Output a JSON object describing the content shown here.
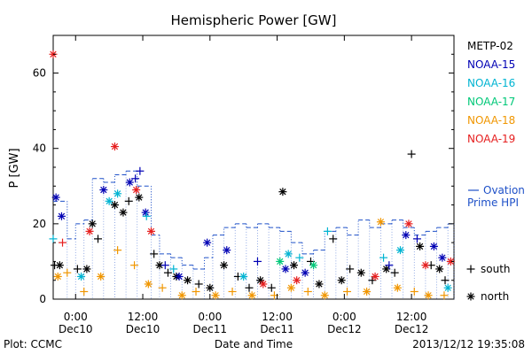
{
  "footer": {
    "plot_label": "Plot: CCMC",
    "timestamp": "2013/12/12 19:35:08"
  },
  "chart_data": {
    "type": "scatter",
    "title": "Hemispheric Power [GW]",
    "xlabel": "Date and Time",
    "ylabel": "P [GW]",
    "xlim": [
      "2013-12-09T20:00",
      "2013-12-12T19:35"
    ],
    "ylim": [
      0,
      70
    ],
    "y_ticks": [
      0,
      20,
      40,
      60
    ],
    "x_ticks": [
      {
        "at": "2013-12-10T00:00",
        "time": "0:00",
        "date": "Dec10"
      },
      {
        "at": "2013-12-10T12:00",
        "time": "12:00",
        "date": "Dec10"
      },
      {
        "at": "2013-12-11T00:00",
        "time": "0:00",
        "date": "Dec11"
      },
      {
        "at": "2013-12-11T12:00",
        "time": "12:00",
        "date": "Dec11"
      },
      {
        "at": "2013-12-12T00:00",
        "time": "0:00",
        "date": "Dec12"
      },
      {
        "at": "2013-12-12T12:00",
        "time": "12:00",
        "date": "Dec12"
      }
    ],
    "legend_placement": "right",
    "marker_legend": [
      {
        "symbol": "+",
        "label": "south"
      },
      {
        "symbol": "*",
        "label": "north"
      }
    ],
    "series": [
      {
        "name": "METP-02",
        "color": "#000000",
        "points": [
          {
            "x": "2013-12-09T20:15",
            "y": 9,
            "m": "+"
          },
          {
            "x": "2013-12-09T21:10",
            "y": 9,
            "m": "*"
          },
          {
            "x": "2013-12-10T00:20",
            "y": 8,
            "m": "+"
          },
          {
            "x": "2013-12-10T02:00",
            "y": 8,
            "m": "*"
          },
          {
            "x": "2013-12-10T03:00",
            "y": 20,
            "m": "*"
          },
          {
            "x": "2013-12-10T04:00",
            "y": 16,
            "m": "+"
          },
          {
            "x": "2013-12-10T07:00",
            "y": 25,
            "m": "*"
          },
          {
            "x": "2013-12-10T08:30",
            "y": 23,
            "m": "*"
          },
          {
            "x": "2013-12-10T09:30",
            "y": 26,
            "m": "+"
          },
          {
            "x": "2013-12-10T11:20",
            "y": 27,
            "m": "*"
          },
          {
            "x": "2013-12-10T14:00",
            "y": 12,
            "m": "+"
          },
          {
            "x": "2013-12-10T15:00",
            "y": 9,
            "m": "*"
          },
          {
            "x": "2013-12-10T16:30",
            "y": 7,
            "m": "+"
          },
          {
            "x": "2013-12-10T18:00",
            "y": 6,
            "m": "*"
          },
          {
            "x": "2013-12-10T20:00",
            "y": 5,
            "m": "*"
          },
          {
            "x": "2013-12-10T22:00",
            "y": 4,
            "m": "+"
          },
          {
            "x": "2013-12-11T00:00",
            "y": 3,
            "m": "*"
          },
          {
            "x": "2013-12-11T02:30",
            "y": 9,
            "m": "*"
          },
          {
            "x": "2013-12-11T05:00",
            "y": 6,
            "m": "+"
          },
          {
            "x": "2013-12-11T07:00",
            "y": 3,
            "m": "+"
          },
          {
            "x": "2013-12-11T09:00",
            "y": 5,
            "m": "*"
          },
          {
            "x": "2013-12-11T11:00",
            "y": 3,
            "m": "+"
          },
          {
            "x": "2013-12-11T13:00",
            "y": 28.5,
            "m": "*"
          },
          {
            "x": "2013-12-11T15:00",
            "y": 9,
            "m": "*"
          },
          {
            "x": "2013-12-11T18:00",
            "y": 10,
            "m": "+"
          },
          {
            "x": "2013-12-11T19:30",
            "y": 4,
            "m": "*"
          },
          {
            "x": "2013-12-11T22:00",
            "y": 16,
            "m": "+"
          },
          {
            "x": "2013-12-11T23:30",
            "y": 5,
            "m": "*"
          },
          {
            "x": "2013-12-12T01:00",
            "y": 8,
            "m": "+"
          },
          {
            "x": "2013-12-12T03:00",
            "y": 7,
            "m": "*"
          },
          {
            "x": "2013-12-12T05:00",
            "y": 5,
            "m": "+"
          },
          {
            "x": "2013-12-12T07:30",
            "y": 8,
            "m": "*"
          },
          {
            "x": "2013-12-12T09:00",
            "y": 7,
            "m": "+"
          },
          {
            "x": "2013-12-12T12:00",
            "y": 38.5,
            "m": "+"
          },
          {
            "x": "2013-12-12T13:30",
            "y": 14,
            "m": "*"
          },
          {
            "x": "2013-12-12T15:30",
            "y": 9,
            "m": "+"
          },
          {
            "x": "2013-12-12T17:00",
            "y": 8,
            "m": "*"
          },
          {
            "x": "2013-12-12T18:00",
            "y": 5,
            "m": "+"
          }
        ]
      },
      {
        "name": "NOAA-15",
        "color": "#0000b4",
        "points": [
          {
            "x": "2013-12-09T20:30",
            "y": 27,
            "m": "*"
          },
          {
            "x": "2013-12-09T21:30",
            "y": 22,
            "m": "*"
          },
          {
            "x": "2013-12-10T05:00",
            "y": 29,
            "m": "*"
          },
          {
            "x": "2013-12-10T09:40",
            "y": 31,
            "m": "*"
          },
          {
            "x": "2013-12-10T10:40",
            "y": 32,
            "m": "+"
          },
          {
            "x": "2013-12-10T11:30",
            "y": 34,
            "m": "+"
          },
          {
            "x": "2013-12-10T12:30",
            "y": 23,
            "m": "*"
          },
          {
            "x": "2013-12-10T16:00",
            "y": 9,
            "m": "+"
          },
          {
            "x": "2013-12-10T18:30",
            "y": 6,
            "m": "*"
          },
          {
            "x": "2013-12-10T23:30",
            "y": 15,
            "m": "*"
          },
          {
            "x": "2013-12-11T03:00",
            "y": 13,
            "m": "*"
          },
          {
            "x": "2013-12-11T08:30",
            "y": 10,
            "m": "+"
          },
          {
            "x": "2013-12-11T13:30",
            "y": 8,
            "m": "*"
          },
          {
            "x": "2013-12-11T17:00",
            "y": 7,
            "m": "*"
          },
          {
            "x": "2013-12-12T08:00",
            "y": 9,
            "m": "+"
          },
          {
            "x": "2013-12-12T11:00",
            "y": 17,
            "m": "*"
          },
          {
            "x": "2013-12-12T13:00",
            "y": 16,
            "m": "+"
          },
          {
            "x": "2013-12-12T16:00",
            "y": 14,
            "m": "*"
          },
          {
            "x": "2013-12-12T17:30",
            "y": 11,
            "m": "*"
          }
        ]
      },
      {
        "name": "NOAA-16",
        "color": "#00b4d2",
        "points": [
          {
            "x": "2013-12-09T20:00",
            "y": 16,
            "m": "+"
          },
          {
            "x": "2013-12-10T01:00",
            "y": 6,
            "m": "*"
          },
          {
            "x": "2013-12-10T06:00",
            "y": 26,
            "m": "*"
          },
          {
            "x": "2013-12-10T07:30",
            "y": 28,
            "m": "*"
          },
          {
            "x": "2013-12-10T12:40",
            "y": 22,
            "m": "+"
          },
          {
            "x": "2013-12-10T17:30",
            "y": 8,
            "m": "+"
          },
          {
            "x": "2013-12-11T06:00",
            "y": 6,
            "m": "*"
          },
          {
            "x": "2013-12-11T14:00",
            "y": 12,
            "m": "*"
          },
          {
            "x": "2013-12-11T16:00",
            "y": 11,
            "m": "+"
          },
          {
            "x": "2013-12-11T21:00",
            "y": 18,
            "m": "+"
          },
          {
            "x": "2013-12-12T07:00",
            "y": 11,
            "m": "+"
          },
          {
            "x": "2013-12-12T10:00",
            "y": 13,
            "m": "*"
          },
          {
            "x": "2013-12-12T18:30",
            "y": 3,
            "m": "*"
          }
        ]
      },
      {
        "name": "NOAA-17",
        "color": "#00c878",
        "points": [
          {
            "x": "2013-12-11T12:30",
            "y": 10,
            "m": "*"
          },
          {
            "x": "2013-12-11T18:30",
            "y": 9,
            "m": "*"
          }
        ]
      },
      {
        "name": "NOAA-18",
        "color": "#f09600",
        "points": [
          {
            "x": "2013-12-09T20:50",
            "y": 6,
            "m": "*"
          },
          {
            "x": "2013-12-09T22:30",
            "y": 7,
            "m": "+"
          },
          {
            "x": "2013-12-10T01:30",
            "y": 2,
            "m": "+"
          },
          {
            "x": "2013-12-10T04:30",
            "y": 6,
            "m": "*"
          },
          {
            "x": "2013-12-10T07:30",
            "y": 13,
            "m": "+"
          },
          {
            "x": "2013-12-10T10:30",
            "y": 9,
            "m": "+"
          },
          {
            "x": "2013-12-10T13:00",
            "y": 4,
            "m": "*"
          },
          {
            "x": "2013-12-10T15:30",
            "y": 3,
            "m": "+"
          },
          {
            "x": "2013-12-10T19:00",
            "y": 1,
            "m": "*"
          },
          {
            "x": "2013-12-10T21:30",
            "y": 2,
            "m": "+"
          },
          {
            "x": "2013-12-11T01:00",
            "y": 1,
            "m": "*"
          },
          {
            "x": "2013-12-11T04:00",
            "y": 2,
            "m": "+"
          },
          {
            "x": "2013-12-11T07:30",
            "y": 1,
            "m": "*"
          },
          {
            "x": "2013-12-11T11:30",
            "y": 1,
            "m": "+"
          },
          {
            "x": "2013-12-11T14:30",
            "y": 3,
            "m": "*"
          },
          {
            "x": "2013-12-11T17:30",
            "y": 2,
            "m": "+"
          },
          {
            "x": "2013-12-11T20:30",
            "y": 1,
            "m": "*"
          },
          {
            "x": "2013-12-12T00:30",
            "y": 2,
            "m": "+"
          },
          {
            "x": "2013-12-12T04:00",
            "y": 2,
            "m": "*"
          },
          {
            "x": "2013-12-12T06:30",
            "y": 20.5,
            "m": "*"
          },
          {
            "x": "2013-12-12T09:30",
            "y": 3,
            "m": "*"
          },
          {
            "x": "2013-12-12T12:30",
            "y": 2,
            "m": "+"
          },
          {
            "x": "2013-12-12T15:00",
            "y": 1,
            "m": "*"
          },
          {
            "x": "2013-12-12T17:50",
            "y": 1,
            "m": "+"
          }
        ]
      },
      {
        "name": "NOAA-19",
        "color": "#e61e1e",
        "points": [
          {
            "x": "2013-12-09T20:00",
            "y": 65,
            "m": "*"
          },
          {
            "x": "2013-12-09T21:40",
            "y": 15,
            "m": "+"
          },
          {
            "x": "2013-12-10T02:30",
            "y": 18,
            "m": "*"
          },
          {
            "x": "2013-12-10T07:00",
            "y": 40.5,
            "m": "*"
          },
          {
            "x": "2013-12-10T10:50",
            "y": 29,
            "m": "*"
          },
          {
            "x": "2013-12-10T13:30",
            "y": 18,
            "m": "*"
          },
          {
            "x": "2013-12-11T09:30",
            "y": 4,
            "m": "*"
          },
          {
            "x": "2013-12-11T15:30",
            "y": 5,
            "m": "*"
          },
          {
            "x": "2013-12-12T05:30",
            "y": 6,
            "m": "*"
          },
          {
            "x": "2013-12-12T11:30",
            "y": 20,
            "m": "*"
          },
          {
            "x": "2013-12-12T14:30",
            "y": 9,
            "m": "*"
          },
          {
            "x": "2013-12-12T19:00",
            "y": 10,
            "m": "*"
          }
        ]
      }
    ],
    "ovation_model": {
      "name": "Ovation Prime HPI",
      "color": "#1e50c8",
      "step_values": [
        {
          "x": "2013-12-09T20:00",
          "y": 26
        },
        {
          "x": "2013-12-09T22:30",
          "y": 16
        },
        {
          "x": "2013-12-10T00:00",
          "y": 20
        },
        {
          "x": "2013-12-10T01:30",
          "y": 21
        },
        {
          "x": "2013-12-10T03:00",
          "y": 32
        },
        {
          "x": "2013-12-10T05:00",
          "y": 31
        },
        {
          "x": "2013-12-10T07:00",
          "y": 33
        },
        {
          "x": "2013-12-10T09:00",
          "y": 34
        },
        {
          "x": "2013-12-10T11:00",
          "y": 30
        },
        {
          "x": "2013-12-10T13:30",
          "y": 17
        },
        {
          "x": "2013-12-10T15:00",
          "y": 12
        },
        {
          "x": "2013-12-10T17:00",
          "y": 11
        },
        {
          "x": "2013-12-10T19:00",
          "y": 9
        },
        {
          "x": "2013-12-10T21:00",
          "y": 8
        },
        {
          "x": "2013-12-10T23:00",
          "y": 11
        },
        {
          "x": "2013-12-11T00:30",
          "y": 17
        },
        {
          "x": "2013-12-11T02:30",
          "y": 19
        },
        {
          "x": "2013-12-11T04:30",
          "y": 20
        },
        {
          "x": "2013-12-11T06:30",
          "y": 19
        },
        {
          "x": "2013-12-11T08:30",
          "y": 20
        },
        {
          "x": "2013-12-11T10:30",
          "y": 19
        },
        {
          "x": "2013-12-11T12:30",
          "y": 18
        },
        {
          "x": "2013-12-11T14:30",
          "y": 15
        },
        {
          "x": "2013-12-11T16:30",
          "y": 12
        },
        {
          "x": "2013-12-11T18:30",
          "y": 13
        },
        {
          "x": "2013-12-11T20:30",
          "y": 18
        },
        {
          "x": "2013-12-11T22:30",
          "y": 19
        },
        {
          "x": "2013-12-12T00:30",
          "y": 17
        },
        {
          "x": "2013-12-12T02:30",
          "y": 21
        },
        {
          "x": "2013-12-12T04:30",
          "y": 19
        },
        {
          "x": "2013-12-12T06:30",
          "y": 20
        },
        {
          "x": "2013-12-12T08:30",
          "y": 21
        },
        {
          "x": "2013-12-12T10:30",
          "y": 19
        },
        {
          "x": "2013-12-12T12:30",
          "y": 17
        },
        {
          "x": "2013-12-12T14:30",
          "y": 18
        },
        {
          "x": "2013-12-12T16:30",
          "y": 19
        },
        {
          "x": "2013-12-12T18:30",
          "y": 20
        }
      ]
    }
  }
}
